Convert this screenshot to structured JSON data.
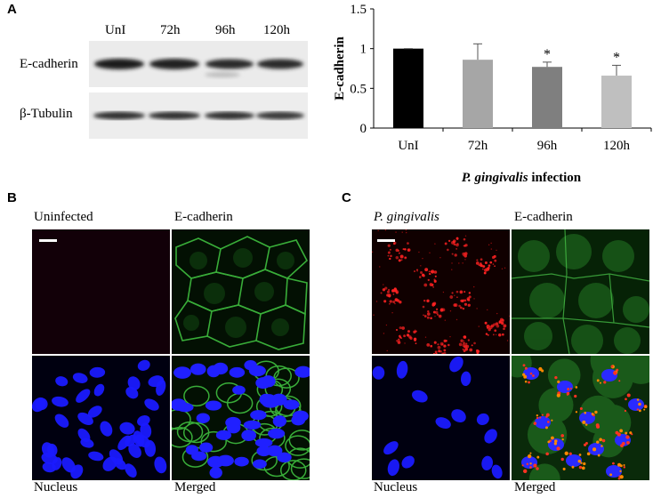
{
  "panel_a": {
    "letter": "A",
    "blot": {
      "lanes": [
        "UnI",
        "72h",
        "96h",
        "120h"
      ],
      "rows": [
        "E-cadherin",
        "β-Tubulin"
      ]
    }
  },
  "chart_data": {
    "type": "bar",
    "categories": [
      "UnI",
      "72h",
      "96h",
      "120h"
    ],
    "values": [
      1.0,
      0.86,
      0.77,
      0.66
    ],
    "errors": [
      0.0,
      0.2,
      0.06,
      0.13
    ],
    "significance": [
      "",
      "",
      "*",
      "*"
    ],
    "colors": [
      "#000000",
      "#a6a6a6",
      "#7f7f7f",
      "#bfbfbf"
    ],
    "title": "",
    "ylabel": "E-cadherin",
    "xlabel_italic": "P. gingivalis",
    "xlabel_rest": " infection",
    "ylim": [
      0,
      1.5
    ],
    "yticks": [
      "0",
      "0.5",
      "1",
      "1.5"
    ],
    "grid": false
  },
  "panel_b": {
    "letter": "B",
    "labels": {
      "top_left": "Uninfected",
      "top_right": "E-cadherin",
      "bottom_left": "Nucleus",
      "bottom_right": "Merged"
    }
  },
  "panel_c": {
    "letter": "C",
    "labels": {
      "top_left": "P. gingivalis",
      "top_right": "E-cadherin",
      "bottom_left": "Nucleus",
      "bottom_right": "Merged"
    }
  }
}
